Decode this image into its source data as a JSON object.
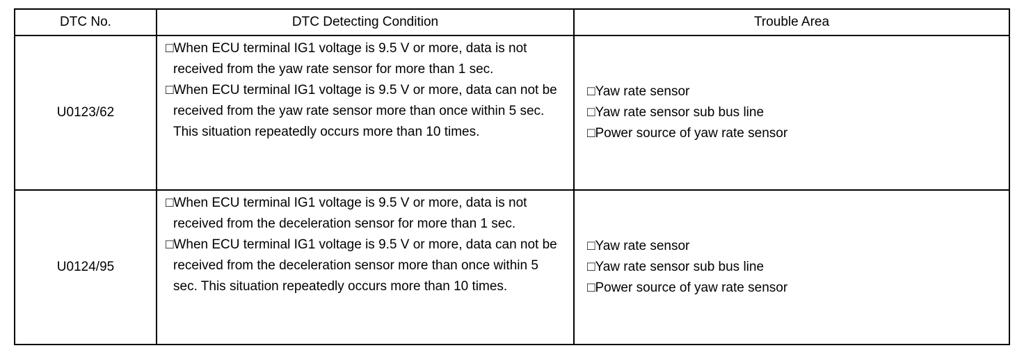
{
  "headers": {
    "dtc_no": "DTC No.",
    "condition": "DTC Detecting Condition",
    "trouble_area": "Trouble Area"
  },
  "rows": [
    {
      "code": "U0123/62",
      "conditions": [
        "□When ECU terminal IG1 voltage is 9.5 V or more, data is not received from the yaw rate sensor for more than 1 sec.",
        "□When ECU terminal IG1 voltage is 9.5 V or more, data can not be received from the yaw rate sensor more than once within 5 sec. This situation repeatedly occurs more than 10 times."
      ],
      "trouble_areas": [
        "□Yaw rate sensor",
        "□Yaw rate sensor sub bus line",
        "□Power source of yaw rate sensor"
      ]
    },
    {
      "code": "U0124/95",
      "conditions": [
        "□When ECU terminal IG1 voltage is 9.5 V or more, data is not received from the deceleration sensor for more than 1 sec.",
        "□When ECU terminal IG1 voltage is 9.5 V or more, data can not be received from the deceleration sensor more than once within 5 sec. This situation repeatedly occurs more than 10 times."
      ],
      "trouble_areas": [
        "□Yaw rate sensor",
        "□Yaw rate sensor sub bus line",
        "□Power source of yaw rate sensor"
      ]
    }
  ]
}
